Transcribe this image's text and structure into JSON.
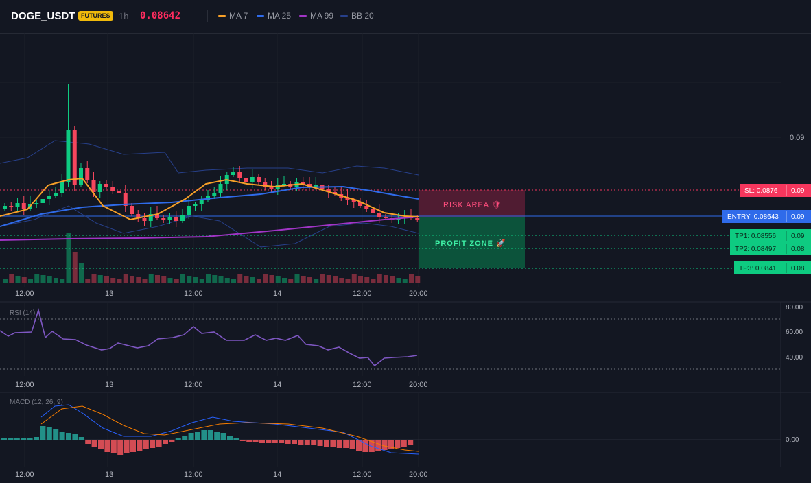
{
  "header": {
    "symbol": "DOGE_USDT",
    "market_badge": "FUTURES",
    "timeframe": "1h",
    "last_price": "0.08642",
    "indicators": [
      {
        "label": "MA 7",
        "color": "#f7a028"
      },
      {
        "label": "MA 25",
        "color": "#2f6bea"
      },
      {
        "label": "MA 99",
        "color": "#a135c6"
      },
      {
        "label": "BB 20",
        "color": "#27408b"
      }
    ]
  },
  "main_chart": {
    "price_ticks": [
      "0.09"
    ],
    "time_labels": [
      "12:00",
      "13",
      "12:00",
      "14",
      "12:00",
      "20:00"
    ],
    "zones": {
      "risk": "RISK AREA 🛡",
      "profit": "PROFIT ZONE 🚀"
    },
    "levels": {
      "sl": {
        "label": "SL: 0.0876",
        "suffix": "0.09",
        "value": 0.0876
      },
      "entry": {
        "label": "ENTRY: 0.08643",
        "suffix": "0.09",
        "value": 0.08643
      },
      "tp1": {
        "label": "TP1: 0.08556",
        "suffix": "0.09",
        "value": 0.08556
      },
      "tp2": {
        "label": "TP2: 0.08497",
        "suffix": "0.08",
        "value": 0.08497
      },
      "tp3": {
        "label": "TP3: 0.0841",
        "suffix": "0.08",
        "value": 0.0841
      }
    }
  },
  "rsi_panel": {
    "label": "RSI (14)",
    "ticks": [
      "80.00",
      "60.00",
      "40.00"
    ],
    "time_labels": [
      "12:00",
      "13",
      "12:00",
      "14",
      "12:00",
      "20:00"
    ]
  },
  "macd_panel": {
    "label": "MACD (12, 26, 9)",
    "ticks": [
      "0.00"
    ],
    "time_labels": [
      "12:00",
      "13",
      "12:00",
      "14",
      "12:00",
      "20:00"
    ]
  },
  "colors": {
    "up": "#0ecb81",
    "down": "#f6465d",
    "sl": "#f6365d",
    "entry": "#2f6bea",
    "tp": "#0ecb81",
    "rsi": "#7e57c2",
    "macd": "#2962ff",
    "signal": "#f57c00",
    "bg": "#131722",
    "grid": "#1e222d"
  }
}
